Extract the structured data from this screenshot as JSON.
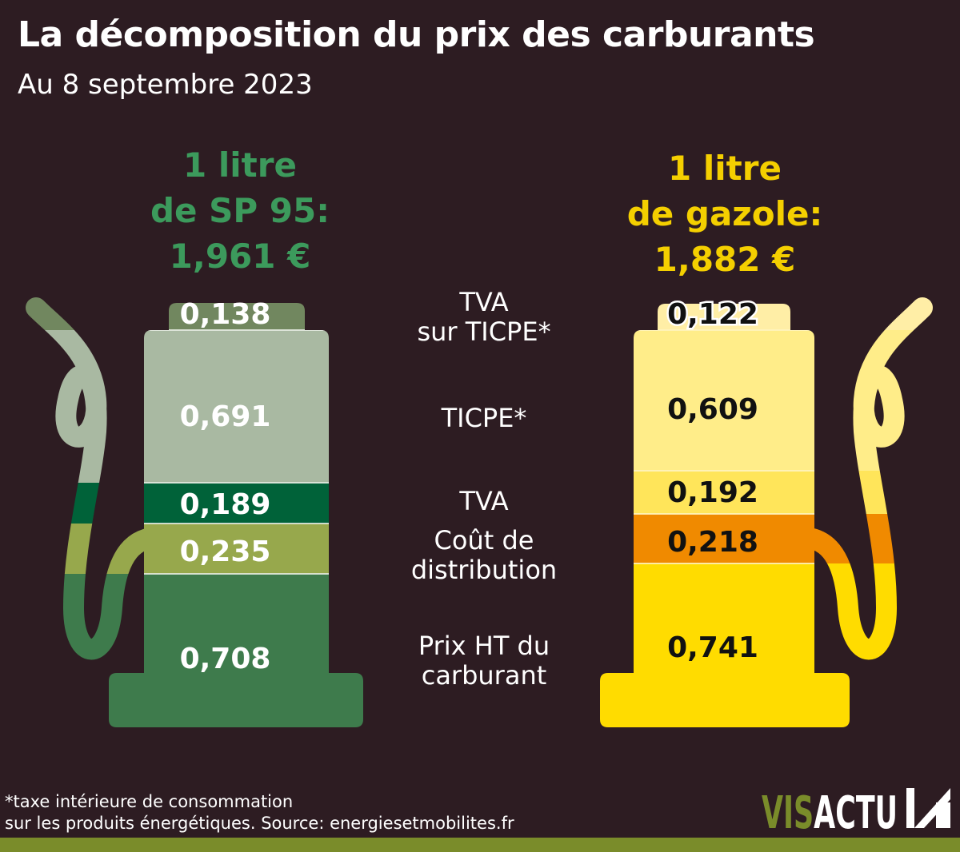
{
  "title": "La décomposition du prix des carburants",
  "subtitle": "Au 8 septembre 2023",
  "colors": {
    "background": "#2d1c22",
    "sp95_heading": "#3c9a5c",
    "gazole_heading": "#f4cf00",
    "footer_bar": "#7a8c2a"
  },
  "chart_data": {
    "type": "bar",
    "stacked": true,
    "categories": [
      "TVA sur TICPE*",
      "TICPE*",
      "TVA",
      "Coût de distribution",
      "Prix HT du carburant"
    ],
    "category_lines": [
      [
        "TVA",
        "sur TICPE*"
      ],
      [
        "TICPE*"
      ],
      [
        "TVA"
      ],
      [
        "Coût de",
        "distribution"
      ],
      [
        "Prix HT du",
        "carburant"
      ]
    ],
    "series": [
      {
        "name": "1 litre de SP 95",
        "heading_lines": [
          "1 litre",
          "de SP 95:",
          "1,961 €"
        ],
        "total": 1.961,
        "values": [
          0.138,
          0.691,
          0.189,
          0.235,
          0.708
        ],
        "labels": [
          "0,138",
          "0,691",
          "0,189",
          "0,235",
          "0,708"
        ],
        "colors": [
          "#71875f",
          "#a9b9a2",
          "#006239",
          "#97a84c",
          "#3e7b4c"
        ],
        "text_color": "#ffffff"
      },
      {
        "name": "1 litre de gazole",
        "heading_lines": [
          "1 litre",
          "de gazole:",
          "1,882 €"
        ],
        "total": 1.882,
        "values": [
          0.122,
          0.609,
          0.192,
          0.218,
          0.741
        ],
        "labels": [
          "0,122",
          "0,609",
          "0,192",
          "0,218",
          "0,741"
        ],
        "colors": [
          "#ffeea6",
          "#ffed89",
          "#ffe55a",
          "#f08a00",
          "#ffdc00"
        ],
        "text_color": "#111111"
      }
    ]
  },
  "footnote": {
    "line1": "*taxe intérieure de consommation",
    "line2": "sur les produits énergétiques. Source: energiesetmobilites.fr"
  },
  "logo": {
    "part1": "VIS",
    "part2": "ACTU",
    "colors": {
      "part1": "#7a8c2a",
      "part2": "#ffffff"
    }
  }
}
